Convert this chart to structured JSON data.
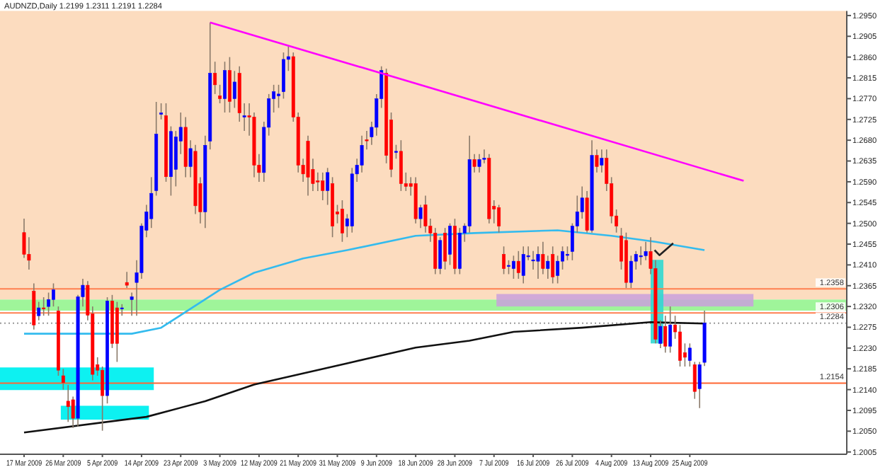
{
  "chart_data": {
    "type": "candlestick",
    "title": "AUDNZD,Daily  1.2199 1.2311 1.2191 1.2284",
    "categories": [
      "17 Mar 2009",
      null,
      null,
      null,
      null,
      null,
      null,
      null,
      "26 Mar 2009",
      null,
      null,
      null,
      null,
      null,
      null,
      null,
      "5 Apr 2009",
      null,
      null,
      null,
      null,
      null,
      null,
      null,
      "14 Apr 2009",
      null,
      null,
      null,
      null,
      null,
      null,
      null,
      "23 Apr 2009",
      null,
      null,
      null,
      null,
      null,
      null,
      null,
      "3 May 2009",
      null,
      null,
      null,
      null,
      null,
      null,
      null,
      "12 May 2009",
      null,
      null,
      null,
      null,
      null,
      null,
      null,
      "21 May 2009",
      null,
      null,
      null,
      null,
      null,
      null,
      null,
      "31 May 2009",
      null,
      null,
      null,
      null,
      null,
      null,
      null,
      "9 Jun 2009",
      null,
      null,
      null,
      null,
      null,
      null,
      null,
      "18 Jun 2009",
      null,
      null,
      null,
      null,
      null,
      null,
      null,
      "28 Jun 2009",
      null,
      null,
      null,
      null,
      null,
      null,
      null,
      "7 Jul 2009",
      null,
      null,
      null,
      null,
      null,
      null,
      null,
      "16 Jul 2009",
      null,
      null,
      null,
      null,
      null,
      null,
      null,
      "26 Jul 2009",
      null,
      null,
      null,
      null,
      null,
      null,
      null,
      "4 Aug 2009",
      null,
      null,
      null,
      null,
      null,
      null,
      null,
      "13 Aug 2009",
      null,
      null,
      null,
      null,
      null,
      null,
      null,
      "25 Aug 2009",
      null,
      null,
      null,
      null,
      null,
      null,
      null,
      null,
      null,
      null,
      null,
      null,
      null,
      null,
      null,
      null,
      null,
      null,
      null,
      null,
      null,
      null,
      null,
      null,
      null,
      null,
      null
    ],
    "ohlc": [
      [
        1.248,
        1.251,
        1.2425,
        1.2433
      ],
      [
        1.2433,
        1.247,
        1.24,
        1.242
      ],
      [
        1.2353,
        1.237,
        1.227,
        1.228
      ],
      [
        1.23,
        1.233,
        1.229,
        1.2317
      ],
      [
        1.2317,
        1.234,
        1.23,
        1.2315
      ],
      [
        1.232,
        1.235,
        1.23,
        1.2335
      ],
      [
        1.2335,
        1.237,
        1.232,
        1.2356
      ],
      [
        1.231,
        1.232,
        1.217,
        1.2182
      ],
      [
        1.217,
        1.2185,
        1.214,
        1.2155
      ],
      [
        1.2115,
        1.215,
        1.207,
        1.2103
      ],
      [
        1.2118,
        1.2125,
        1.2057,
        1.2078
      ],
      [
        1.2078,
        1.2345,
        1.206,
        1.2341
      ],
      [
        1.2341,
        1.238,
        1.232,
        1.2366
      ],
      [
        1.2366,
        1.2375,
        1.229,
        1.2301
      ],
      [
        1.2304,
        1.232,
        1.216,
        1.2173
      ],
      [
        1.2194,
        1.221,
        1.217,
        1.2182
      ],
      [
        1.2182,
        1.219,
        1.2051,
        1.2127
      ],
      [
        1.2127,
        1.234,
        1.211,
        1.2332
      ],
      [
        1.2332,
        1.2345,
        1.223,
        1.224
      ],
      [
        1.2317,
        1.233,
        1.22,
        1.224
      ],
      [
        1.2315,
        1.2325,
        1.23,
        1.2317
      ],
      [
        1.2372,
        1.2395,
        1.236,
        1.2366
      ],
      [
        1.2335,
        1.235,
        1.23,
        1.2341
      ],
      [
        1.2372,
        1.242,
        1.23,
        1.2393
      ],
      [
        1.2393,
        1.25,
        1.238,
        1.2494
      ],
      [
        1.2485,
        1.254,
        1.247,
        1.2525
      ],
      [
        1.251,
        1.26,
        1.249,
        1.2565
      ],
      [
        1.2571,
        1.2763,
        1.256,
        1.2693
      ],
      [
        1.2736,
        1.276,
        1.2725,
        1.2739
      ],
      [
        1.2733,
        1.276,
        1.259,
        1.2601
      ],
      [
        1.2601,
        1.271,
        1.256,
        1.2699
      ],
      [
        1.2617,
        1.27,
        1.258,
        1.2687
      ],
      [
        1.2678,
        1.274,
        1.265,
        1.2708
      ],
      [
        1.2708,
        1.273,
        1.26,
        1.2623
      ],
      [
        1.2623,
        1.268,
        1.26,
        1.2662
      ],
      [
        1.2656,
        1.267,
        1.252,
        1.2538
      ],
      [
        1.2586,
        1.26,
        1.25,
        1.2525
      ],
      [
        1.2525,
        1.269,
        1.249,
        1.2669
      ],
      [
        1.2678,
        1.2935,
        1.266,
        1.2825
      ],
      [
        1.2825,
        1.285,
        1.278,
        1.28
      ],
      [
        1.2776,
        1.28,
        1.276,
        1.277
      ],
      [
        1.277,
        1.285,
        1.274,
        1.2831
      ],
      [
        1.2831,
        1.286,
        1.274,
        1.2764
      ],
      [
        1.277,
        1.283,
        1.275,
        1.2806
      ],
      [
        1.2825,
        1.284,
        1.272,
        1.2739
      ],
      [
        1.273,
        1.276,
        1.27,
        1.2733
      ],
      [
        1.2733,
        1.276,
        1.269,
        1.273
      ],
      [
        1.273,
        1.274,
        1.26,
        1.2626
      ],
      [
        1.2626,
        1.265,
        1.259,
        1.261
      ],
      [
        1.261,
        1.272,
        1.259,
        1.2708
      ],
      [
        1.2708,
        1.278,
        1.269,
        1.277
      ],
      [
        1.277,
        1.28,
        1.274,
        1.2785
      ],
      [
        1.2776,
        1.28,
        1.275,
        1.278
      ],
      [
        1.2785,
        1.287,
        1.277,
        1.2855
      ],
      [
        1.2855,
        1.2883,
        1.283,
        1.2861
      ],
      [
        1.2861,
        1.287,
        1.272,
        1.273
      ],
      [
        1.273,
        1.274,
        1.261,
        1.2626
      ],
      [
        1.2626,
        1.264,
        1.259,
        1.2607
      ],
      [
        1.2678,
        1.269,
        1.256,
        1.26
      ],
      [
        1.2617,
        1.264,
        1.257,
        1.2586
      ],
      [
        1.2592,
        1.261,
        1.257,
        1.259
      ],
      [
        1.2592,
        1.261,
        1.255,
        1.2571
      ],
      [
        1.2571,
        1.262,
        1.254,
        1.261
      ],
      [
        1.2586,
        1.26,
        1.247,
        1.2494
      ],
      [
        1.2525,
        1.254,
        1.25,
        1.252
      ],
      [
        1.2531,
        1.255,
        1.246,
        1.2479
      ],
      [
        1.2494,
        1.252,
        1.247,
        1.251
      ],
      [
        1.2494,
        1.262,
        1.248,
        1.2607
      ],
      [
        1.2607,
        1.264,
        1.259,
        1.2626
      ],
      [
        1.2626,
        1.269,
        1.261,
        1.2669
      ],
      [
        1.2681,
        1.27,
        1.266,
        1.268
      ],
      [
        1.2687,
        1.272,
        1.267,
        1.2708
      ],
      [
        1.2708,
        1.278,
        1.269,
        1.277
      ],
      [
        1.277,
        1.284,
        1.275,
        1.2831
      ],
      [
        1.2825,
        1.2835,
        1.263,
        1.2647
      ],
      [
        1.2724,
        1.274,
        1.26,
        1.2617
      ],
      [
        1.2656,
        1.267,
        1.264,
        1.2656
      ],
      [
        1.2656,
        1.268,
        1.257,
        1.2586
      ],
      [
        1.2586,
        1.261,
        1.257,
        1.258
      ],
      [
        1.2586,
        1.26,
        1.256,
        1.258
      ],
      [
        1.2586,
        1.26,
        1.25,
        1.251
      ],
      [
        1.251,
        1.254,
        1.249,
        1.2534
      ],
      [
        1.254,
        1.256,
        1.248,
        1.2494
      ],
      [
        1.2494,
        1.251,
        1.246,
        1.2479
      ],
      [
        1.2479,
        1.249,
        1.239,
        1.2402
      ],
      [
        1.2402,
        1.247,
        1.239,
        1.2463
      ],
      [
        1.2479,
        1.249,
        1.24,
        1.2418
      ],
      [
        1.2433,
        1.25,
        1.241,
        1.2494
      ],
      [
        1.2494,
        1.251,
        1.239,
        1.2402
      ],
      [
        1.2402,
        1.249,
        1.239,
        1.2479
      ],
      [
        1.2479,
        1.25,
        1.246,
        1.2494
      ],
      [
        1.2494,
        1.269,
        1.248,
        1.2638
      ],
      [
        1.2638,
        1.265,
        1.261,
        1.2623
      ],
      [
        1.2623,
        1.265,
        1.261,
        1.2638
      ],
      [
        1.2641,
        1.266,
        1.263,
        1.2641
      ],
      [
        1.2641,
        1.265,
        1.25,
        1.251
      ],
      [
        1.2537,
        1.255,
        1.25,
        1.2531
      ],
      [
        1.2534,
        1.254,
        1.248,
        1.2494
      ],
      [
        1.2433,
        1.245,
        1.239,
        1.2402
      ],
      [
        1.2409,
        1.242,
        1.239,
        1.2409
      ],
      [
        1.2402,
        1.243,
        1.238,
        1.2418
      ],
      [
        1.2418,
        1.244,
        1.238,
        1.2393
      ],
      [
        1.2387,
        1.245,
        1.237,
        1.2433
      ],
      [
        1.243,
        1.245,
        1.242,
        1.243
      ],
      [
        1.2421,
        1.244,
        1.24,
        1.2421
      ],
      [
        1.2418,
        1.245,
        1.238,
        1.2433
      ],
      [
        1.2433,
        1.246,
        1.239,
        1.2402
      ],
      [
        1.2402,
        1.243,
        1.238,
        1.2418
      ],
      [
        1.2433,
        1.245,
        1.237,
        1.2384
      ],
      [
        1.2387,
        1.243,
        1.237,
        1.2418
      ],
      [
        1.2418,
        1.245,
        1.24,
        1.2439
      ],
      [
        1.2433,
        1.245,
        1.242,
        1.2433
      ],
      [
        1.2439,
        1.25,
        1.242,
        1.2494
      ],
      [
        1.2494,
        1.256,
        1.248,
        1.2525
      ],
      [
        1.2525,
        1.258,
        1.251,
        1.2555
      ],
      [
        1.2555,
        1.257,
        1.248,
        1.2485
      ],
      [
        1.2485,
        1.268,
        1.248,
        1.2647
      ],
      [
        1.2647,
        1.266,
        1.261,
        1.2623
      ],
      [
        1.2626,
        1.266,
        1.261,
        1.2641
      ],
      [
        1.2641,
        1.266,
        1.257,
        1.2586
      ],
      [
        1.2586,
        1.26,
        1.25,
        1.2516
      ],
      [
        1.2516,
        1.253,
        1.248,
        1.2494
      ],
      [
        1.2473,
        1.249,
        1.24,
        1.2418
      ],
      [
        1.2463,
        1.248,
        1.236,
        1.2372
      ],
      [
        1.2372,
        1.243,
        1.236,
        1.2418
      ],
      [
        1.2418,
        1.244,
        1.24,
        1.2433
      ],
      [
        1.243,
        1.245,
        1.241,
        1.243
      ],
      [
        1.243,
        1.246,
        1.242,
        1.2439
      ],
      [
        1.2439,
        1.247,
        1.239,
        1.2402
      ],
      [
        1.2402,
        1.242,
        1.224,
        1.2249
      ],
      [
        1.224,
        1.229,
        1.223,
        1.2277
      ],
      [
        1.2277,
        1.23,
        1.222,
        1.2234
      ],
      [
        1.2234,
        1.232,
        1.222,
        1.228
      ],
      [
        1.228,
        1.23,
        1.225,
        1.2265
      ],
      [
        1.2265,
        1.228,
        1.219,
        1.2203
      ],
      [
        1.222,
        1.224,
        1.219,
        1.221
      ],
      [
        1.2203,
        1.224,
        1.219,
        1.223
      ],
      [
        1.2194,
        1.22,
        1.212,
        1.2136
      ],
      [
        1.2142,
        1.22,
        1.21,
        1.2194
      ],
      [
        1.2199,
        1.2311,
        1.2191,
        1.2284
      ],
      null,
      null,
      null,
      null,
      null,
      null,
      null,
      null,
      null,
      null,
      null,
      null,
      null,
      null,
      null,
      null,
      null,
      null,
      null,
      null,
      null,
      null,
      null,
      null
    ],
    "colors": [
      "#ff0000",
      "#ff0000",
      "#ff0000",
      "#0000ff",
      "#ff0000",
      "#0000ff",
      "#0000ff",
      "#ff0000",
      "#ff0000",
      "#ff0000",
      "#ff0000",
      "#0000ff",
      "#0000ff",
      "#ff0000",
      "#ff0000",
      "#ff0000",
      "#ff0000",
      "#0000ff",
      "#ff0000",
      "#ff0000",
      "#0000ff",
      "#ff0000",
      "#0000ff",
      "#0000ff",
      "#0000ff",
      "#0000ff",
      "#0000ff",
      "#0000ff",
      "#0000ff",
      "#ff0000",
      "#0000ff",
      "#0000ff",
      "#0000ff",
      "#ff0000",
      "#0000ff",
      "#ff0000",
      "#ff0000",
      "#0000ff",
      "#0000ff",
      "#ff0000",
      "#ff0000",
      "#0000ff",
      "#ff0000",
      "#0000ff",
      "#ff0000",
      "#0000ff",
      "#ff0000",
      "#ff0000",
      "#ff0000",
      "#0000ff",
      "#0000ff",
      "#0000ff",
      "#0000ff",
      "#0000ff",
      "#0000ff",
      "#ff0000",
      "#ff0000",
      "#ff0000",
      "#ff0000",
      "#ff0000",
      "#ff0000",
      "#ff0000",
      "#0000ff",
      "#ff0000",
      "#ff0000",
      "#ff0000",
      "#0000ff",
      "#0000ff",
      "#0000ff",
      "#0000ff",
      "#ff0000",
      "#0000ff",
      "#0000ff",
      "#0000ff",
      "#ff0000",
      "#ff0000",
      "#0000ff",
      "#ff0000",
      "#ff0000",
      "#ff0000",
      "#ff0000",
      "#0000ff",
      "#ff0000",
      "#ff0000",
      "#ff0000",
      "#0000ff",
      "#ff0000",
      "#0000ff",
      "#ff0000",
      "#0000ff",
      "#0000ff",
      "#0000ff",
      "#ff0000",
      "#0000ff",
      "#0000ff",
      "#ff0000",
      "#ff0000",
      "#ff0000",
      "#ff0000",
      "#0000ff",
      "#0000ff",
      "#ff0000",
      "#0000ff",
      "#0000ff",
      "#0000ff",
      "#0000ff",
      "#ff0000",
      "#0000ff",
      "#ff0000",
      "#0000ff",
      "#0000ff",
      "#0000ff",
      "#0000ff",
      "#0000ff",
      "#0000ff",
      "#ff0000",
      "#0000ff",
      "#ff0000",
      "#0000ff",
      "#ff0000",
      "#ff0000",
      "#ff0000",
      "#ff0000",
      "#ff0000",
      "#0000ff",
      "#0000ff",
      "#0000ff",
      "#0000ff",
      "#ff0000",
      "#ff0000",
      "#0000ff",
      "#ff0000",
      "#0000ff",
      "#ff0000",
      "#ff0000",
      "#ff0000",
      "#0000ff",
      "#ff0000",
      "#0000ff",
      "#0000ff",
      null,
      null,
      null,
      null,
      null,
      null,
      null,
      null,
      null,
      null,
      null,
      null,
      null,
      null,
      null,
      null,
      null,
      null,
      null,
      null,
      null,
      null,
      null,
      null
    ],
    "series": [
      {
        "type": "line",
        "color": "#ff00ff",
        "values": [
          null,
          null,
          null,
          null,
          null,
          null,
          null,
          null,
          null,
          null,
          null,
          null,
          null,
          null,
          null,
          null,
          null,
          null,
          null,
          null,
          null,
          null,
          null,
          null,
          null,
          null,
          null,
          null,
          null,
          null,
          null,
          null,
          null,
          null,
          null,
          null,
          null,
          null,
          1.2935,
          null,
          null,
          null,
          null,
          null,
          null,
          null,
          null,
          null,
          null,
          null,
          null,
          null,
          null,
          null,
          null,
          null,
          null,
          null,
          null,
          null,
          null,
          null,
          null,
          null,
          null,
          null,
          null,
          null,
          null,
          null,
          null,
          null,
          null,
          null,
          null,
          null,
          null,
          null,
          null,
          null,
          null,
          null,
          null,
          null,
          null,
          null,
          null,
          null,
          null,
          null,
          null,
          null,
          null,
          null,
          null,
          null,
          null,
          null,
          null,
          null,
          null,
          null,
          null,
          null,
          null,
          null,
          null,
          null,
          null,
          null,
          null,
          null,
          null,
          null,
          null,
          null,
          null,
          null,
          null,
          null,
          null,
          null,
          null,
          null,
          null,
          null,
          null,
          null,
          null,
          null,
          null,
          null,
          null,
          null,
          null,
          null,
          null,
          null,
          null,
          null,
          null,
          null,
          null,
          null,
          null,
          null,
          null,
          1.2592,
          null,
          null,
          null,
          null,
          null,
          null,
          null,
          null,
          null,
          null,
          null,
          null,
          null,
          null,
          null,
          null
        ]
      },
      {
        "type": "line",
        "color": "#33bbee",
        "values": [
          1.2261,
          null,
          null,
          null,
          null,
          null,
          null,
          null,
          null,
          null,
          null,
          null,
          null,
          null,
          null,
          null,
          null,
          null,
          null,
          null,
          null,
          null,
          1.2261,
          null,
          null,
          null,
          null,
          null,
          1.2274,
          null,
          null,
          null,
          null,
          null,
          null,
          null,
          null,
          null,
          null,
          null,
          1.2356,
          null,
          null,
          null,
          null,
          null,
          null,
          1.2393,
          null,
          null,
          null,
          null,
          null,
          null,
          null,
          null,
          null,
          1.2424,
          null,
          null,
          null,
          null,
          null,
          null,
          null,
          null,
          1.2442,
          null,
          null,
          null,
          null,
          null,
          null,
          null,
          null,
          null,
          null,
          null,
          null,
          null,
          1.2473,
          null,
          null,
          null,
          null,
          null,
          null,
          null,
          null,
          null,
          null,
          null,
          1.2479,
          null,
          null,
          null,
          null,
          null,
          null,
          null,
          null,
          null,
          null,
          null,
          null,
          null,
          null,
          null,
          null,
          1.2485,
          null,
          null,
          null,
          null,
          null,
          null,
          null,
          null,
          null,
          null,
          1.2473,
          null,
          null,
          null,
          null,
          null,
          null,
          null,
          null,
          1.246,
          null,
          null,
          null,
          null,
          null,
          null,
          null,
          null,
          null,
          1.2442,
          null,
          null,
          null,
          null,
          null,
          null,
          null,
          null,
          null,
          null,
          null,
          null,
          null,
          null,
          null,
          null,
          null,
          null,
          null,
          null,
          null,
          null,
          null,
          null
        ]
      },
      {
        "type": "line",
        "color": "#111111",
        "values": [
          1.2047,
          null,
          null,
          null,
          null,
          null,
          null,
          null,
          null,
          null,
          null,
          null,
          null,
          null,
          null,
          null,
          null,
          null,
          null,
          null,
          null,
          null,
          null,
          null,
          null,
          1.2081,
          null,
          null,
          null,
          null,
          null,
          null,
          null,
          null,
          null,
          null,
          null,
          1.2115,
          null,
          null,
          null,
          null,
          null,
          null,
          null,
          null,
          null,
          1.2151,
          null,
          null,
          null,
          null,
          null,
          null,
          null,
          null,
          null,
          null,
          null,
          null,
          null,
          null,
          null,
          null,
          null,
          null,
          1.2197,
          null,
          null,
          null,
          null,
          null,
          null,
          null,
          null,
          null,
          null,
          null,
          null,
          null,
          1.2231,
          null,
          null,
          null,
          null,
          null,
          null,
          null,
          null,
          null,
          null,
          1.2246,
          null,
          null,
          null,
          null,
          null,
          null,
          null,
          null,
          1.2265,
          null,
          null,
          null,
          null,
          null,
          null,
          null,
          null,
          null,
          null,
          null,
          null,
          null,
          1.2274,
          null,
          null,
          null,
          null,
          null,
          null,
          null,
          null,
          null,
          null,
          null,
          null,
          null,
          1.2286,
          null,
          null,
          null,
          null,
          null,
          null,
          null,
          null,
          null,
          null,
          1.2283,
          null,
          null,
          null,
          null,
          null,
          null,
          null,
          null,
          null,
          null,
          null,
          null,
          null,
          null,
          null,
          null,
          null,
          null,
          null,
          null,
          null,
          null,
          null,
          null
        ]
      }
    ],
    "bands": [
      {
        "axis": "y",
        "from": 1.2335,
        "to": 1.296,
        "color": "#fcdcbf"
      },
      {
        "axis": "y",
        "from": 1.2311,
        "to": 1.2335,
        "color": "#9ff59a"
      }
    ],
    "ref_lines": [
      {
        "axis": "y",
        "value": 1.2358,
        "label": "1.2358",
        "color": "#ff7f50",
        "line_style": "solid"
      },
      {
        "axis": "y",
        "value": 1.2306,
        "label": "1.2306",
        "color": "#ff7f50",
        "line_style": "solid"
      },
      {
        "axis": "y",
        "value": 1.2284,
        "label": "1.2284",
        "color": "#999999",
        "line_style": "dotted"
      },
      {
        "axis": "y",
        "value": 1.2154,
        "label": "1.2154",
        "color": "#ff6633",
        "line_style": "solid"
      }
    ],
    "ylim": [
      1.2,
      1.296
    ],
    "yticks": [
      {
        "value": 1.2005,
        "label": "1.2005"
      },
      {
        "value": 1.205,
        "label": "1.2050"
      },
      {
        "value": 1.2095,
        "label": "1.2095"
      },
      {
        "value": 1.214,
        "label": "1.2140"
      },
      {
        "value": 1.2185,
        "label": "1.2185"
      },
      {
        "value": 1.223,
        "label": "1.2230"
      },
      {
        "value": 1.2275,
        "label": "1.2275"
      },
      {
        "value": 1.232,
        "label": "1.2320"
      },
      {
        "value": 1.2365,
        "label": "1.2365"
      },
      {
        "value": 1.241,
        "label": "1.2410"
      },
      {
        "value": 1.2455,
        "label": "1.2455"
      },
      {
        "value": 1.25,
        "label": "1.2500"
      },
      {
        "value": 1.2545,
        "label": "1.2545"
      },
      {
        "value": 1.259,
        "label": "1.2590"
      },
      {
        "value": 1.2635,
        "label": "1.2635"
      },
      {
        "value": 1.268,
        "label": "1.2680"
      },
      {
        "value": 1.2725,
        "label": "1.2725"
      },
      {
        "value": 1.277,
        "label": "1.2770"
      },
      {
        "value": 1.2815,
        "label": "1.2815"
      },
      {
        "value": 1.286,
        "label": "1.2860"
      },
      {
        "value": 1.2905,
        "label": "1.2905"
      },
      {
        "value": 1.295,
        "label": "1.2950"
      }
    ]
  }
}
